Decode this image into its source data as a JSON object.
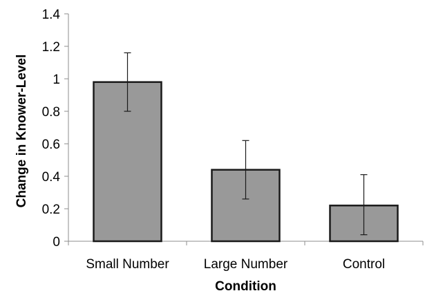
{
  "chart_data": {
    "type": "bar",
    "title": "",
    "xlabel": "Condition",
    "ylabel": "Change in Knower-Level",
    "categories": [
      "Small Number",
      "Large Number",
      "Control"
    ],
    "values": [
      0.98,
      0.44,
      0.22
    ],
    "error_low": [
      0.8,
      0.26,
      0.04
    ],
    "error_high": [
      1.16,
      0.62,
      0.41
    ],
    "ylim": [
      0,
      1.4
    ],
    "yticks": [
      "0",
      "0.2",
      "0.4",
      "0.6",
      "0.8",
      "1",
      "1.2",
      "1.4"
    ],
    "grid": false,
    "legend": "none",
    "bar_color": "#999999",
    "bar_edge_color": "#1a1a1a"
  }
}
